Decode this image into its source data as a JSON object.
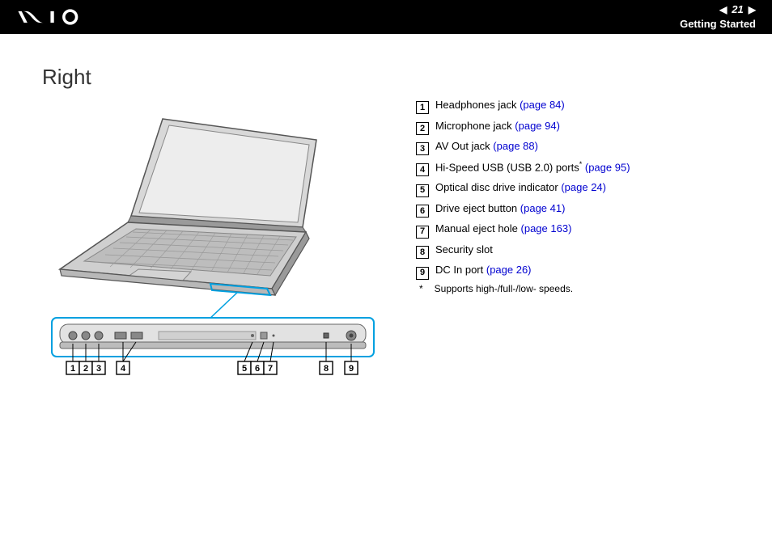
{
  "header": {
    "page_number": "21",
    "breadcrumb": "Getting Started"
  },
  "section": {
    "title": "Right"
  },
  "callouts": [
    {
      "n": "1",
      "label": "Headphones jack ",
      "link": "(page 84)"
    },
    {
      "n": "2",
      "label": "Microphone jack ",
      "link": "(page 94)"
    },
    {
      "n": "3",
      "label": "AV Out jack ",
      "link": "(page 88)"
    },
    {
      "n": "4",
      "label": "Hi-Speed USB (USB 2.0) ports",
      "sup": "*",
      "post": " ",
      "link": "(page 95)"
    },
    {
      "n": "5",
      "label": "Optical disc drive indicator ",
      "link": "(page 24)"
    },
    {
      "n": "6",
      "label": "Drive eject button ",
      "link": "(page 41)"
    },
    {
      "n": "7",
      "label": "Manual eject hole ",
      "link": "(page 163)"
    },
    {
      "n": "8",
      "label": "Security slot",
      "link": ""
    },
    {
      "n": "9",
      "label": "DC In port ",
      "link": "(page 26)"
    }
  ],
  "footnote": {
    "mark": "*",
    "text": "Supports high-/full-/low- speeds."
  },
  "diagram_numbers": [
    "1",
    "2",
    "3",
    "4",
    "5",
    "6",
    "7",
    "8",
    "9"
  ],
  "colors": {
    "link": "#0000d0",
    "header_bg": "#000000",
    "text": "#000000",
    "laptop_body": "#cfcfcf",
    "laptop_dark": "#9a9a9a",
    "screen": "#e8e8e8",
    "callout_line": "#00a0e0"
  }
}
